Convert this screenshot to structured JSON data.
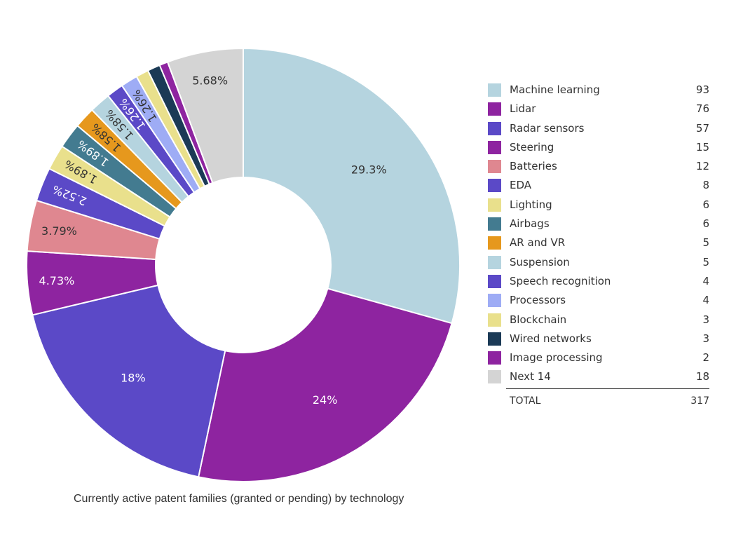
{
  "chart_data": {
    "type": "pie",
    "variant": "donut",
    "caption": "Currently active patent families (granted or pending) by technology",
    "slices": [
      {
        "name": "Machine learning",
        "value": 93,
        "label": "29.3%",
        "color": "#b5d4df"
      },
      {
        "name": "Lidar",
        "value": 76,
        "label": "24%",
        "color": "#8e24a0"
      },
      {
        "name": "Radar sensors",
        "value": 57,
        "label": "18%",
        "color": "#5b49c7"
      },
      {
        "name": "Steering",
        "value": 15,
        "label": "4.73%",
        "color": "#8e24a0"
      },
      {
        "name": "Batteries",
        "value": 12,
        "label": "3.79%",
        "color": "#df8790"
      },
      {
        "name": "EDA",
        "value": 8,
        "label": "2.52%",
        "color": "#5b49c7"
      },
      {
        "name": "Lighting",
        "value": 6,
        "label": "1.89%",
        "color": "#e9e08c"
      },
      {
        "name": "Airbags",
        "value": 6,
        "label": "1.89%",
        "color": "#437b90"
      },
      {
        "name": "AR and VR",
        "value": 5,
        "label": "1.58%",
        "color": "#e6981d"
      },
      {
        "name": "Suspension",
        "value": 5,
        "label": "1.58%",
        "color": "#b5d4df"
      },
      {
        "name": "Speech recognition",
        "value": 4,
        "label": "1.26%",
        "color": "#5b49c7"
      },
      {
        "name": "Processors",
        "value": 4,
        "label": "1.26%",
        "color": "#9eacf5"
      },
      {
        "name": "Blockchain",
        "value": 3,
        "label": "",
        "color": "#e9e08c"
      },
      {
        "name": "Wired networks",
        "value": 3,
        "label": "",
        "color": "#1b3a56"
      },
      {
        "name": "Image processing",
        "value": 2,
        "label": "",
        "color": "#8e24a0"
      },
      {
        "name": "Next 14",
        "value": 18,
        "label": "5.68%",
        "color": "#d4d4d4"
      }
    ],
    "total_label": "TOTAL",
    "total_value": 317
  }
}
